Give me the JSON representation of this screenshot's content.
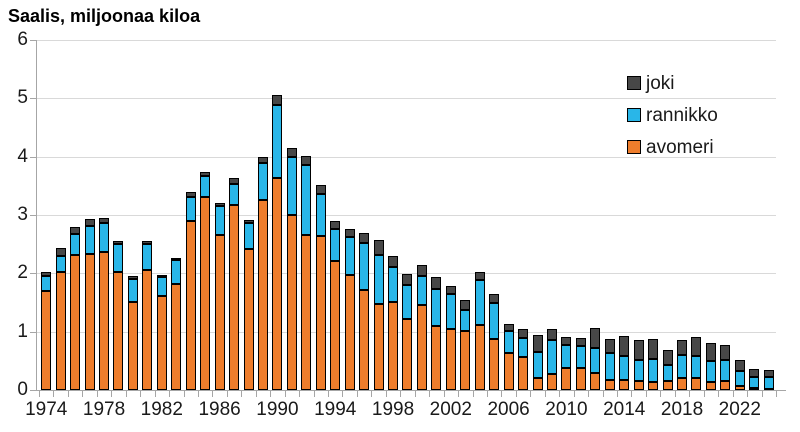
{
  "title": "Saalis, miljoonaa kiloa",
  "legend": [
    {
      "label": "joki",
      "color": "#474747"
    },
    {
      "label": "rannikko",
      "color": "#29B6E8"
    },
    {
      "label": "avomeri",
      "color": "#EE7D2C"
    }
  ],
  "chart_data": {
    "type": "bar",
    "stacked": true,
    "title": "Saalis, miljoonaa kiloa",
    "ylabel": "Saalis, miljoonaa kiloa",
    "ylim": [
      0,
      6
    ],
    "ytick_interval": 1,
    "ytick_labels": [
      "0",
      "1",
      "2",
      "3",
      "4",
      "5",
      "6"
    ],
    "grid": "horizontal",
    "legend_position": "top-right",
    "categories": [
      1974,
      1975,
      1976,
      1977,
      1978,
      1979,
      1980,
      1981,
      1982,
      1983,
      1984,
      1985,
      1986,
      1987,
      1988,
      1989,
      1990,
      1991,
      1992,
      1993,
      1994,
      1995,
      1996,
      1997,
      1998,
      1999,
      2000,
      2001,
      2002,
      2003,
      2004,
      2005,
      2006,
      2007,
      2008,
      2009,
      2010,
      2011,
      2012,
      2013,
      2014,
      2015,
      2016,
      2017,
      2018,
      2019,
      2020,
      2021,
      2022,
      2023,
      2024
    ],
    "xtick_labels": [
      "1974",
      "1978",
      "1982",
      "1986",
      "1990",
      "1994",
      "1998",
      "2002",
      "2006",
      "2010",
      "2014",
      "2018",
      "2022"
    ],
    "series": [
      {
        "name": "avomeri",
        "color": "#EE7D2C",
        "values": [
          1.7,
          2.03,
          2.32,
          2.34,
          2.36,
          2.02,
          1.51,
          2.06,
          1.61,
          1.82,
          2.89,
          3.31,
          2.65,
          3.18,
          2.42,
          3.26,
          3.63,
          3.0,
          2.66,
          2.64,
          2.22,
          1.97,
          1.72,
          1.48,
          1.51,
          1.21,
          1.45,
          1.1,
          1.05,
          1.01,
          1.12,
          0.88,
          0.64,
          0.57,
          0.2,
          0.27,
          0.38,
          0.37,
          0.3,
          0.17,
          0.18,
          0.16,
          0.13,
          0.16,
          0.2,
          0.21,
          0.13,
          0.16,
          0.07,
          0.03,
          0.02
        ]
      },
      {
        "name": "rannikko",
        "color": "#29B6E8",
        "values": [
          0.25,
          0.27,
          0.36,
          0.48,
          0.5,
          0.48,
          0.4,
          0.44,
          0.32,
          0.41,
          0.42,
          0.36,
          0.5,
          0.35,
          0.45,
          0.63,
          1.26,
          1.0,
          1.2,
          0.72,
          0.54,
          0.66,
          0.8,
          0.83,
          0.6,
          0.59,
          0.5,
          0.64,
          0.59,
          0.36,
          0.76,
          0.61,
          0.37,
          0.33,
          0.46,
          0.59,
          0.39,
          0.39,
          0.42,
          0.47,
          0.4,
          0.35,
          0.4,
          0.27,
          0.4,
          0.37,
          0.36,
          0.36,
          0.26,
          0.2,
          0.21
        ]
      },
      {
        "name": "joki",
        "color": "#474747",
        "values": [
          0.07,
          0.13,
          0.12,
          0.11,
          0.09,
          0.06,
          0.05,
          0.06,
          0.03,
          0.03,
          0.08,
          0.07,
          0.06,
          0.1,
          0.04,
          0.11,
          0.17,
          0.15,
          0.16,
          0.15,
          0.14,
          0.13,
          0.17,
          0.27,
          0.18,
          0.19,
          0.19,
          0.19,
          0.14,
          0.17,
          0.15,
          0.16,
          0.13,
          0.15,
          0.28,
          0.18,
          0.14,
          0.14,
          0.35,
          0.23,
          0.35,
          0.34,
          0.34,
          0.25,
          0.25,
          0.33,
          0.32,
          0.26,
          0.18,
          0.13,
          0.12
        ]
      }
    ]
  }
}
